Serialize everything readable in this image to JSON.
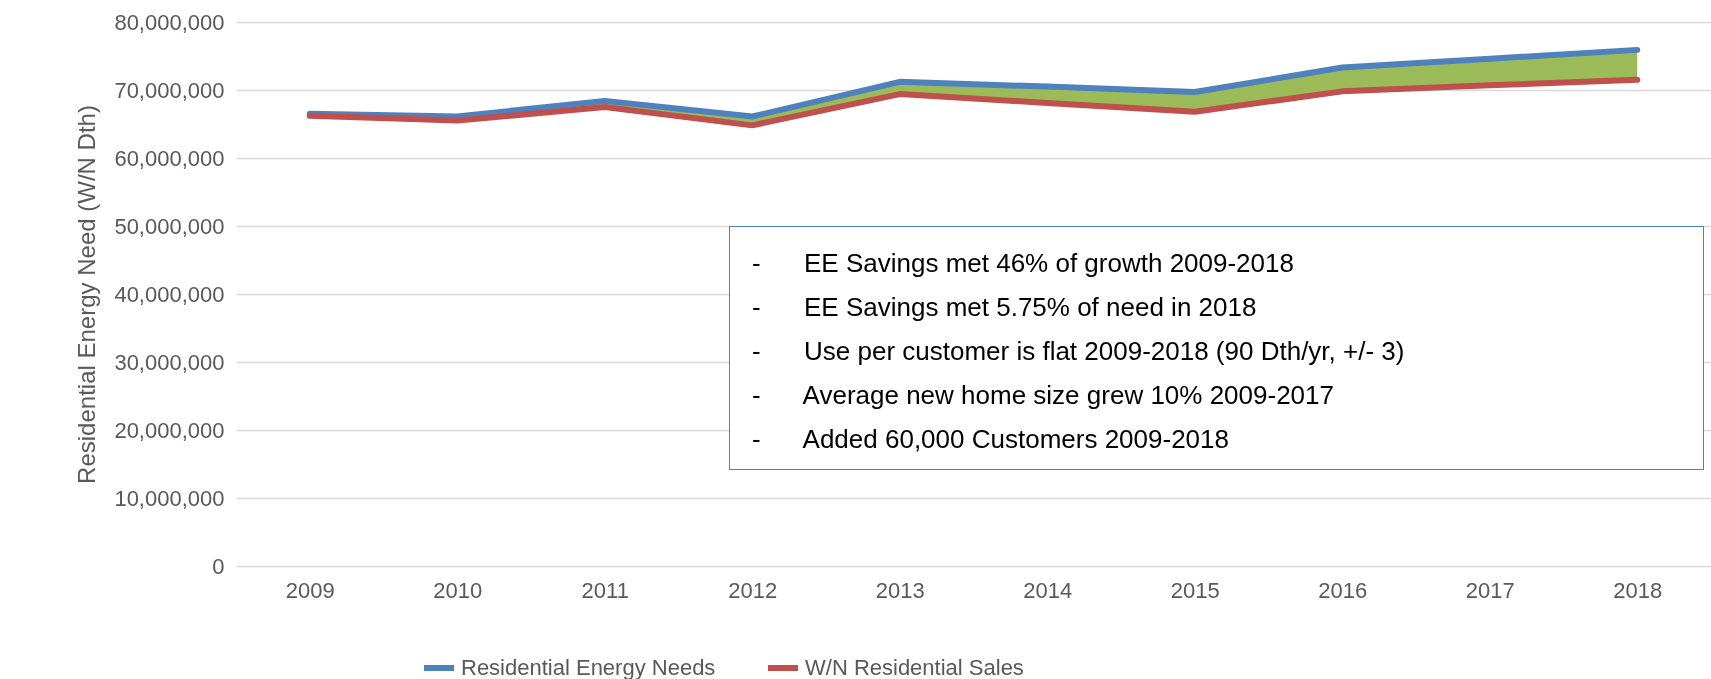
{
  "chart_data": {
    "type": "line",
    "ylabel": "Residential Energy Need (W/N Dth)",
    "categories": [
      "2009",
      "2010",
      "2011",
      "2012",
      "2013",
      "2014",
      "2015",
      "2016",
      "2017",
      "2018"
    ],
    "series": [
      {
        "name": "Residential Energy Needs",
        "color": "#4f81bd",
        "values": [
          66500000,
          66100000,
          68400000,
          66100000,
          71200000,
          70500000,
          69700000,
          73300000,
          74600000,
          75900000
        ],
        "lower": [
          66200000,
          65500000,
          67500000,
          64800000,
          69400000,
          68100000,
          66800000,
          69800000,
          70700000,
          71500000
        ],
        "upper": [
          66500000,
          66100000,
          68400000,
          66100000,
          71200000,
          70500000,
          69700000,
          73300000,
          74600000,
          75900000
        ]
      },
      {
        "name": "W/N Residential Sales",
        "color": "#c0504d",
        "values": [
          66200000,
          65500000,
          67500000,
          64800000,
          69400000,
          68100000,
          66800000,
          69800000,
          70700000,
          71500000
        ]
      }
    ],
    "ylim": [
      0,
      80000000
    ],
    "yticks": [
      0,
      {
        "value": 10000000,
        "label": "10,000,000"
      },
      {
        "value": 20000000,
        "label": "20,000,000"
      },
      {
        "value": 30000000,
        "label": "30,000,000"
      },
      {
        "value": 40000000,
        "label": "40,000,000"
      },
      {
        "value": 50000000,
        "label": "50,000,000"
      },
      {
        "value": 60000000,
        "label": "60,000,000"
      },
      {
        "value": 70000000,
        "label": "70,000,000"
      },
      {
        "value": 80000000,
        "label": "80,000,000"
      }
    ],
    "grid": "y",
    "legend": "bottom",
    "annotations": [
      "-      EE Savings met 46% of growth 2009-2018",
      "-      EE Savings met 5.75% of need in 2018",
      "-      Use per customer is flat 2009-2018 (90 Dth/yr, +/- 3)",
      "-      Average new home size grew 10% 2009-2017",
      "-      Added 60,000 Customers 2009-2018"
    ]
  }
}
